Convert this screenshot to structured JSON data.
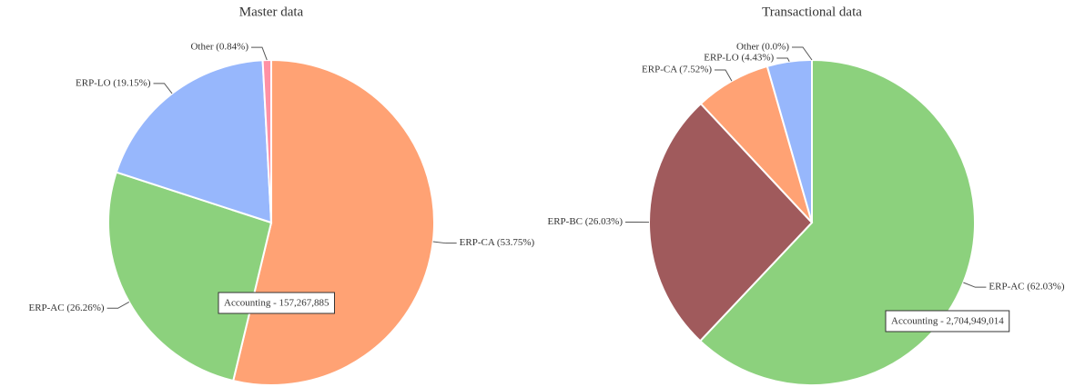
{
  "chart_data": [
    {
      "type": "pie",
      "title": "Master data",
      "categories": [
        "ERP-CA",
        "ERP-AC",
        "ERP-LO",
        "Other"
      ],
      "values": [
        53.75,
        26.26,
        19.15,
        0.84
      ],
      "value_labels": [
        "ERP-CA (53.75%)",
        "ERP-AC (26.26%)",
        "ERP-LO (19.15%)",
        "Other (0.84%)"
      ],
      "colors": [
        "#ffa274",
        "#8cd17d",
        "#97b7fc",
        "#ff91a4"
      ],
      "tooltip": "Accounting - 157,267,885"
    },
    {
      "type": "pie",
      "title": "Transactional data",
      "categories": [
        "ERP-AC",
        "ERP-BC",
        "ERP-CA",
        "ERP-LO",
        "Other"
      ],
      "values": [
        62.03,
        26.03,
        7.52,
        4.43,
        0.0
      ],
      "value_labels": [
        "ERP-AC (62.03%)",
        "ERP-BC (26.03%)",
        "ERP-CA (7.52%)",
        "ERP-LO (4.43%)",
        "Other (0.0%)"
      ],
      "colors": [
        "#8cd17d",
        "#a05a5c",
        "#ffa274",
        "#97b7fc",
        "#ff91a4"
      ],
      "tooltip": "Accounting - 2,704,949,014"
    }
  ]
}
